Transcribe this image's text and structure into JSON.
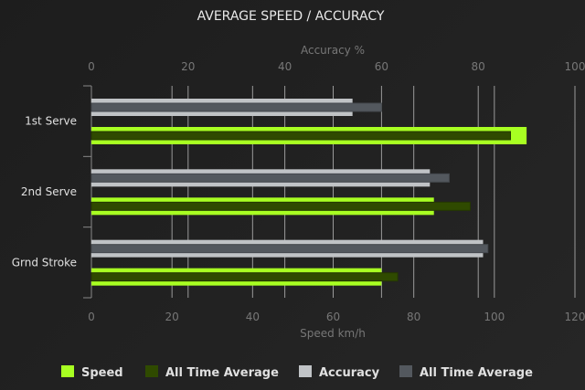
{
  "chart_data": {
    "type": "bar",
    "orientation": "horizontal",
    "title": "AVERAGE SPEED / ACCURACY",
    "categories": [
      "1st Serve",
      "2nd Serve",
      "Grnd Stroke"
    ],
    "x_top": {
      "label": "Accuracy %",
      "range": [
        0,
        100
      ],
      "ticks": [
        0,
        20,
        40,
        60,
        80,
        100
      ]
    },
    "x_bottom": {
      "label": "Speed km/h",
      "range": [
        0,
        120
      ],
      "ticks": [
        0,
        20,
        40,
        60,
        80,
        100,
        120
      ]
    },
    "grid": true,
    "legend_position": "bottom",
    "series": [
      {
        "name": "Speed",
        "axis": "speed",
        "color": "#a8ff22",
        "values": [
          108,
          85,
          72
        ]
      },
      {
        "name": "All Time Average",
        "axis": "speed",
        "color": "#2f4a00",
        "values": [
          104,
          94,
          76
        ]
      },
      {
        "name": "Accuracy",
        "axis": "accuracy",
        "color": "#c0c3c6",
        "values": [
          54,
          70,
          81
        ]
      },
      {
        "name": "All Time Average",
        "axis": "accuracy",
        "color": "#53585e",
        "values": [
          60,
          74,
          82
        ]
      }
    ]
  }
}
